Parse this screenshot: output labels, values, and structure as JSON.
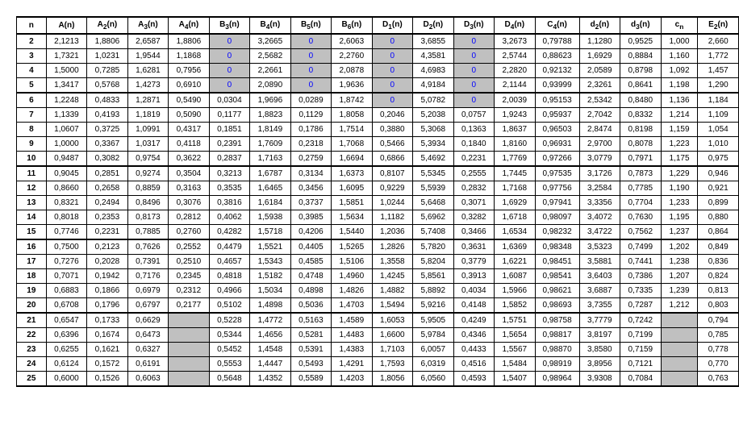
{
  "columns": [
    "n",
    "A(n)",
    "A_2(n)",
    "A_3(n)",
    "A_4(n)",
    "B_3(n)",
    "B_4(n)",
    "B_5(n)",
    "B_6(n)",
    "D_1(n)",
    "D_2(n)",
    "D_3(n)",
    "D_4(n)",
    "C_4(n)",
    "d_2(n)",
    "d_3(n)",
    "c_n",
    "E_2(n)"
  ],
  "groups": [
    {
      "rows": [
        [
          "2",
          "2,1213",
          "1,8806",
          "2,6587",
          "1,8806",
          "0",
          "3,2665",
          "0",
          "2,6063",
          "0",
          "3,6855",
          "0",
          "3,2673",
          "0,79788",
          "1,1280",
          "0,9525",
          "1,000",
          "2,660"
        ],
        [
          "3",
          "1,7321",
          "1,0231",
          "1,9544",
          "1,1868",
          "0",
          "2,5682",
          "0",
          "2,2760",
          "0",
          "4,3581",
          "0",
          "2,5744",
          "0,88623",
          "1,6929",
          "0,8884",
          "1,160",
          "1,772"
        ],
        [
          "4",
          "1,5000",
          "0,7285",
          "1,6281",
          "0,7956",
          "0",
          "2,2661",
          "0",
          "2,0878",
          "0",
          "4,6983",
          "0",
          "2,2820",
          "0,92132",
          "2,0589",
          "0,8798",
          "1,092",
          "1,457"
        ],
        [
          "5",
          "1,3417",
          "0,5768",
          "1,4273",
          "0,6910",
          "0",
          "2,0890",
          "0",
          "1,9636",
          "0",
          "4,9184",
          "0",
          "2,1144",
          "0,93999",
          "2,3261",
          "0,8641",
          "1,198",
          "1,290"
        ]
      ],
      "grey": {
        "0": [
          5,
          7,
          9,
          11
        ],
        "1": [
          5,
          7,
          9,
          11
        ],
        "2": [
          5,
          7,
          9,
          11
        ],
        "3": [
          5,
          7,
          9,
          11
        ]
      },
      "blue": {
        "0": [
          5,
          7,
          9,
          11
        ],
        "1": [
          5,
          7,
          9,
          11
        ],
        "2": [
          5,
          7,
          9,
          11
        ],
        "3": [
          5,
          7,
          9,
          11
        ]
      }
    },
    {
      "rows": [
        [
          "6",
          "1,2248",
          "0,4833",
          "1,2871",
          "0,5490",
          "0,0304",
          "1,9696",
          "0,0289",
          "1,8742",
          "0",
          "5,0782",
          "0",
          "2,0039",
          "0,95153",
          "2,5342",
          "0,8480",
          "1,136",
          "1,184"
        ],
        [
          "7",
          "1,1339",
          "0,4193",
          "1,1819",
          "0,5090",
          "0,1177",
          "1,8823",
          "0,1129",
          "1,8058",
          "0,2046",
          "5,2038",
          "0,0757",
          "1,9243",
          "0,95937",
          "2,7042",
          "0,8332",
          "1,214",
          "1,109"
        ],
        [
          "8",
          "1,0607",
          "0,3725",
          "1,0991",
          "0,4317",
          "0,1851",
          "1,8149",
          "0,1786",
          "1,7514",
          "0,3880",
          "5,3068",
          "0,1363",
          "1,8637",
          "0,96503",
          "2,8474",
          "0,8198",
          "1,159",
          "1,054"
        ],
        [
          "9",
          "1,0000",
          "0,3367",
          "1,0317",
          "0,4118",
          "0,2391",
          "1,7609",
          "0,2318",
          "1,7068",
          "0,5466",
          "5,3934",
          "0,1840",
          "1,8160",
          "0,96931",
          "2,9700",
          "0,8078",
          "1,223",
          "1,010"
        ],
        [
          "10",
          "0,9487",
          "0,3082",
          "0,9754",
          "0,3622",
          "0,2837",
          "1,7163",
          "0,2759",
          "1,6694",
          "0,6866",
          "5,4692",
          "0,2231",
          "1,7769",
          "0,97266",
          "3,0779",
          "0,7971",
          "1,175",
          "0,975"
        ]
      ],
      "grey": {
        "0": [
          9,
          11
        ]
      },
      "blue": {
        "0": [
          9,
          11
        ]
      }
    },
    {
      "rows": [
        [
          "11",
          "0,9045",
          "0,2851",
          "0,9274",
          "0,3504",
          "0,3213",
          "1,6787",
          "0,3134",
          "1,6373",
          "0,8107",
          "5,5345",
          "0,2555",
          "1,7445",
          "0,97535",
          "3,1726",
          "0,7873",
          "1,229",
          "0,946"
        ],
        [
          "12",
          "0,8660",
          "0,2658",
          "0,8859",
          "0,3163",
          "0,3535",
          "1,6465",
          "0,3456",
          "1,6095",
          "0,9229",
          "5,5939",
          "0,2832",
          "1,7168",
          "0,97756",
          "3,2584",
          "0,7785",
          "1,190",
          "0,921"
        ],
        [
          "13",
          "0,8321",
          "0,2494",
          "0,8496",
          "0,3076",
          "0,3816",
          "1,6184",
          "0,3737",
          "1,5851",
          "1,0244",
          "5,6468",
          "0,3071",
          "1,6929",
          "0,97941",
          "3,3356",
          "0,7704",
          "1,233",
          "0,899"
        ],
        [
          "14",
          "0,8018",
          "0,2353",
          "0,8173",
          "0,2812",
          "0,4062",
          "1,5938",
          "0,3985",
          "1,5634",
          "1,1182",
          "5,6962",
          "0,3282",
          "1,6718",
          "0,98097",
          "3,4072",
          "0,7630",
          "1,195",
          "0,880"
        ],
        [
          "15",
          "0,7746",
          "0,2231",
          "0,7885",
          "0,2760",
          "0,4282",
          "1,5718",
          "0,4206",
          "1,5440",
          "1,2036",
          "5,7408",
          "0,3466",
          "1,6534",
          "0,98232",
          "3,4722",
          "0,7562",
          "1,237",
          "0,864"
        ]
      ],
      "grey": {},
      "blue": {}
    },
    {
      "rows": [
        [
          "16",
          "0,7500",
          "0,2123",
          "0,7626",
          "0,2552",
          "0,4479",
          "1,5521",
          "0,4405",
          "1,5265",
          "1,2826",
          "5,7820",
          "0,3631",
          "1,6369",
          "0,98348",
          "3,5323",
          "0,7499",
          "1,202",
          "0,849"
        ],
        [
          "17",
          "0,7276",
          "0,2028",
          "0,7391",
          "0,2510",
          "0,4657",
          "1,5343",
          "0,4585",
          "1,5106",
          "1,3558",
          "5,8204",
          "0,3779",
          "1,6221",
          "0,98451",
          "3,5881",
          "0,7441",
          "1,238",
          "0,836"
        ],
        [
          "18",
          "0,7071",
          "0,1942",
          "0,7176",
          "0,2345",
          "0,4818",
          "1,5182",
          "0,4748",
          "1,4960",
          "1,4245",
          "5,8561",
          "0,3913",
          "1,6087",
          "0,98541",
          "3,6403",
          "0,7386",
          "1,207",
          "0,824"
        ],
        [
          "19",
          "0,6883",
          "0,1866",
          "0,6979",
          "0,2312",
          "0,4966",
          "1,5034",
          "0,4898",
          "1,4826",
          "1,4882",
          "5,8892",
          "0,4034",
          "1,5966",
          "0,98621",
          "3,6887",
          "0,7335",
          "1,239",
          "0,813"
        ],
        [
          "20",
          "0,6708",
          "0,1796",
          "0,6797",
          "0,2177",
          "0,5102",
          "1,4898",
          "0,5036",
          "1,4703",
          "1,5494",
          "5,9216",
          "0,4148",
          "1,5852",
          "0,98693",
          "3,7355",
          "0,7287",
          "1,212",
          "0,803"
        ]
      ],
      "grey": {},
      "blue": {}
    },
    {
      "rows": [
        [
          "21",
          "0,6547",
          "0,1733",
          "0,6629",
          "",
          "0,5228",
          "1,4772",
          "0,5163",
          "1,4589",
          "1,6053",
          "5,9505",
          "0,4249",
          "1,5751",
          "0,98758",
          "3,7779",
          "0,7242",
          "",
          "0,794"
        ],
        [
          "22",
          "0,6396",
          "0,1674",
          "0,6473",
          "",
          "0,5344",
          "1,4656",
          "0,5281",
          "1,4483",
          "1,6600",
          "5,9784",
          "0,4346",
          "1,5654",
          "0,98817",
          "3,8197",
          "0,7199",
          "",
          "0,785"
        ],
        [
          "23",
          "0,6255",
          "0,1621",
          "0,6327",
          "",
          "0,5452",
          "1,4548",
          "0,5391",
          "1,4383",
          "1,7103",
          "6,0057",
          "0,4433",
          "1,5567",
          "0,98870",
          "3,8580",
          "0,7159",
          "",
          "0,778"
        ],
        [
          "24",
          "0,6124",
          "0,1572",
          "0,6191",
          "",
          "0,5553",
          "1,4447",
          "0,5493",
          "1,4291",
          "1,7593",
          "6,0319",
          "0,4516",
          "1,5484",
          "0,98919",
          "3,8956",
          "0,7121",
          "",
          "0,770"
        ],
        [
          "25",
          "0,6000",
          "0,1526",
          "0,6063",
          "",
          "0,5648",
          "1,4352",
          "0,5589",
          "1,4203",
          "1,8056",
          "6,0560",
          "0,4593",
          "1,5407",
          "0,98964",
          "3,9308",
          "0,7084",
          "",
          "0,763"
        ]
      ],
      "grey": {
        "0": [
          4,
          16
        ],
        "1": [
          4,
          16
        ],
        "2": [
          4,
          16
        ],
        "3": [
          4,
          16
        ],
        "4": [
          4,
          16
        ]
      },
      "blue": {}
    }
  ],
  "col_widths": [
    "4.0%",
    "5.5%",
    "5.5%",
    "5.5%",
    "5.5%",
    "5.5%",
    "5.5%",
    "5.5%",
    "5.5%",
    "5.5%",
    "5.5%",
    "5.5%",
    "5.5%",
    "6.0%",
    "5.5%",
    "5.5%",
    "5.0%",
    "5.5%"
  ]
}
